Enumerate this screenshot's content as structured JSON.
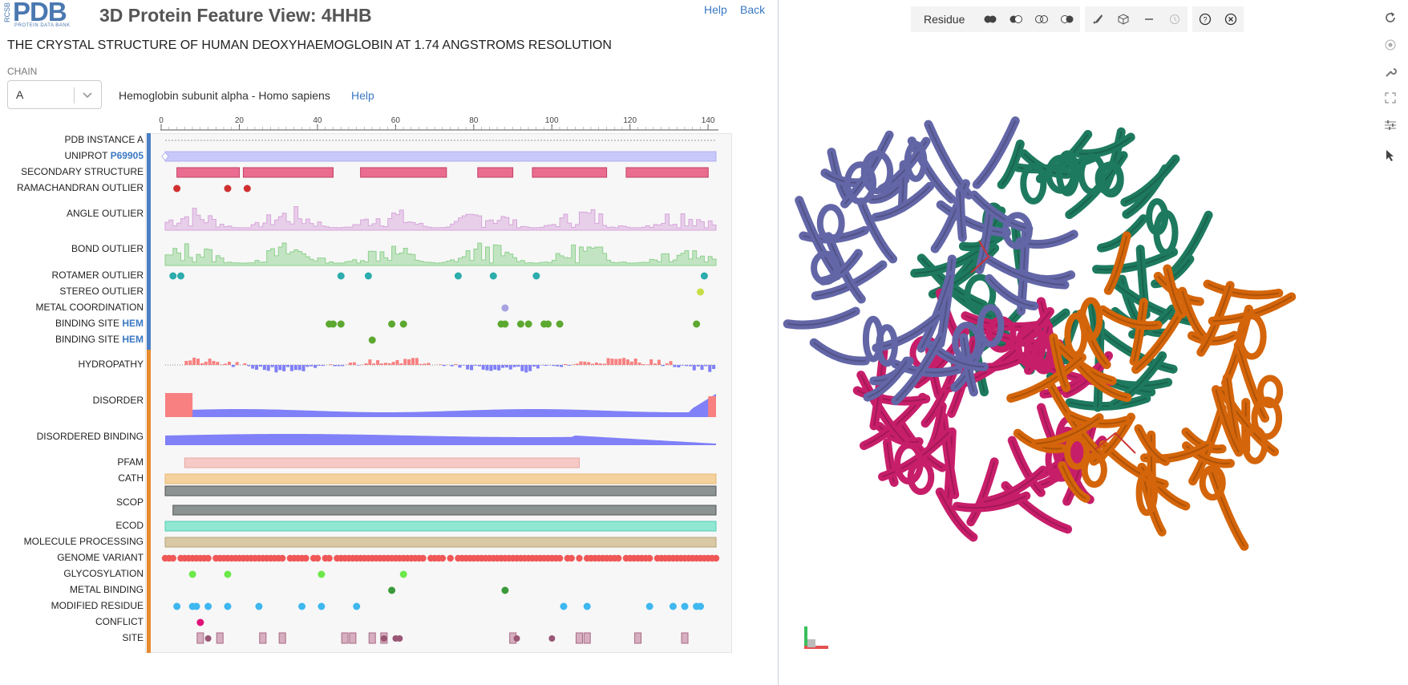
{
  "header": {
    "logo_rcsb": "RCSB",
    "logo_pdb": "PDB",
    "logo_sub": "PROTEIN DATA BANK",
    "title": "3D Protein Feature View: 4HHB",
    "help": "Help",
    "back": "Back",
    "subtitle": "THE CRYSTAL STRUCTURE OF HUMAN DEOXYHAEMOGLOBIN AT 1.74 ANGSTROMS RESOLUTION"
  },
  "chain": {
    "label": "CHAIN",
    "value": "A",
    "protein": "Hemoglobin subunit alpha - Homo sapiens",
    "help": "Help"
  },
  "axis": {
    "min": 0,
    "max": 141,
    "ticks": [
      0,
      20,
      40,
      60,
      80,
      100,
      120,
      140
    ]
  },
  "tracks": [
    {
      "label": "PDB INSTANCE A"
    },
    {
      "label": "UNIPROT",
      "accession": "P69905"
    },
    {
      "label": "SECONDARY STRUCTURE"
    },
    {
      "label": "RAMACHANDRAN OUTLIER"
    },
    {
      "label": "ANGLE OUTLIER"
    },
    {
      "label": "BOND OUTLIER"
    },
    {
      "label": "ROTAMER OUTLIER"
    },
    {
      "label": "STEREO OUTLIER"
    },
    {
      "label": "METAL COORDINATION"
    },
    {
      "label": "BINDING SITE",
      "accession": "HEM"
    },
    {
      "label": "BINDING SITE",
      "accession": "HEM"
    },
    {
      "label": "HYDROPATHY"
    },
    {
      "label": "DISORDER"
    },
    {
      "label": "DISORDERED BINDING"
    },
    {
      "label": "PFAM"
    },
    {
      "label": "CATH"
    },
    {
      "label": "SCOP"
    },
    {
      "label": "ECOD"
    },
    {
      "label": "MOLECULE PROCESSING"
    },
    {
      "label": "GENOME VARIANT"
    },
    {
      "label": "GLYCOSYLATION"
    },
    {
      "label": "METAL BINDING"
    },
    {
      "label": "MODIFIED RESIDUE"
    },
    {
      "label": "CONFLICT"
    },
    {
      "label": "SITE"
    }
  ],
  "features": {
    "secondary_structure": [
      [
        3,
        19
      ],
      [
        20,
        43
      ],
      [
        50,
        72
      ],
      [
        80,
        89
      ],
      [
        94,
        113
      ],
      [
        118,
        139
      ]
    ],
    "ramachandran": [
      3,
      16,
      21
    ],
    "rotamer": [
      2,
      4,
      45,
      52,
      75,
      84,
      95,
      138
    ],
    "stereo": [
      137
    ],
    "metal_coordination": [
      87
    ],
    "binding_hem_1": [
      42,
      43,
      45,
      58,
      61,
      86,
      87,
      91,
      93,
      97,
      98,
      101,
      136
    ],
    "binding_hem_2": [
      53
    ],
    "pfam": [
      5,
      106
    ],
    "scop": [
      2,
      141
    ],
    "glycosylation": [
      7,
      16,
      40,
      61
    ],
    "metal_binding": [
      58,
      87
    ],
    "modified_residue": [
      3,
      7,
      8,
      11,
      16,
      24,
      35,
      40,
      49,
      102,
      108,
      124,
      130,
      133,
      136,
      137
    ],
    "conflict": [
      9
    ],
    "site_squares": [
      9,
      14,
      25,
      30,
      46,
      48,
      53,
      56,
      89,
      106,
      108,
      121,
      133
    ],
    "site_circles": [
      11,
      56,
      59,
      60,
      90,
      99
    ]
  },
  "colors": {
    "accent": "#3a78c3",
    "structure_bar": "#4a7fc4",
    "annotation_bar": "#e88a2e",
    "uniprot": "#c8c8fa",
    "secondary": "#ea6d8f",
    "ramachandran": "#d03030",
    "angle": "#d7a6db",
    "bond": "#8ed18e",
    "rotamer": "#2cacac",
    "stereo": "#c9de46",
    "metal_coord": "#a7a2e0",
    "binding": "#5ca830",
    "hydropathy_pos": "#f88080",
    "hydropathy_neg": "#8080f8",
    "pfam": "#f6c9c6",
    "cath": "#f5d19e",
    "scop": "#8b9393",
    "ecod": "#8fe7d4",
    "molecule": "#d9c8a4",
    "variant": "#f05757",
    "glyco": "#6ce84a",
    "metal_binding": "#3a9a3a",
    "modified": "#3fb7ef",
    "conflict": "#e01378",
    "site": "#c88ea6"
  },
  "viewer": {
    "residue_label": "Residue",
    "chain_colors": [
      "#6366a6",
      "#c71e6a",
      "#1e7a5e",
      "#d4650a"
    ],
    "toolbar_icons": [
      "ball-stick-icon",
      "spacefill-icon",
      "cartoon-icon",
      "surface-icon",
      "paint-icon",
      "cube-icon",
      "minus-icon",
      "history-icon",
      "help-icon",
      "close-icon"
    ],
    "side_icons": [
      "reset-icon",
      "settings-icon",
      "wrench-icon",
      "expand-icon",
      "sliders-icon",
      "pointer-icon"
    ]
  }
}
